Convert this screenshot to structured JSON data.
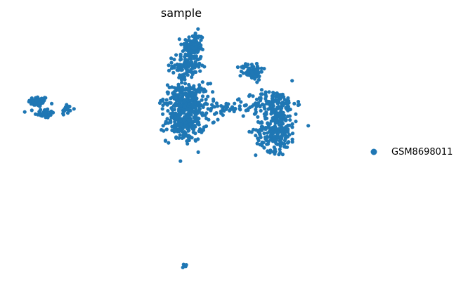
{
  "chart_data": {
    "type": "scatter",
    "title": "sample",
    "xlabel": "",
    "ylabel": "",
    "grid": false,
    "axes_visible": false,
    "legend_position": "right",
    "series": [
      {
        "name": "GSM8698011",
        "color": "#1f77b4",
        "clusters": [
          {
            "id": "far-left-upper",
            "cx": -8.6,
            "cy": 3.45,
            "sx": 0.28,
            "sy": 0.14,
            "n": 55
          },
          {
            "id": "far-left-lower",
            "cx": -8.25,
            "cy": 2.85,
            "sx": 0.28,
            "sy": 0.13,
            "n": 45
          },
          {
            "id": "small-right-of-left",
            "cx": -6.95,
            "cy": 3.05,
            "sx": 0.18,
            "sy": 0.16,
            "n": 18
          },
          {
            "id": "center-top",
            "cx": 0.35,
            "cy": 6.35,
            "sx": 0.32,
            "sy": 0.38,
            "n": 110
          },
          {
            "id": "center-upper-mid",
            "cx": 0.0,
            "cy": 5.35,
            "sx": 0.42,
            "sy": 0.32,
            "n": 110
          },
          {
            "id": "center-mid",
            "cx": -0.05,
            "cy": 3.65,
            "sx": 0.65,
            "sy": 0.38,
            "n": 190
          },
          {
            "id": "center-lower",
            "cx": -0.1,
            "cy": 2.45,
            "sx": 0.55,
            "sy": 0.55,
            "n": 240
          },
          {
            "id": "bridge",
            "cx": 2.3,
            "cy": 3.05,
            "sx": 0.75,
            "sy": 0.22,
            "n": 45
          },
          {
            "id": "right-top",
            "cx": 3.75,
            "cy": 5.05,
            "sx": 0.32,
            "sy": 0.22,
            "n": 80
          },
          {
            "id": "right-upper",
            "cx": 5.05,
            "cy": 3.35,
            "sx": 0.62,
            "sy": 0.35,
            "n": 140
          },
          {
            "id": "right-lower",
            "cx": 5.15,
            "cy": 1.95,
            "sx": 0.58,
            "sy": 0.55,
            "n": 230
          },
          {
            "id": "bottom-outlier",
            "cx": -0.08,
            "cy": -5.15,
            "sx": 0.05,
            "sy": 0.05,
            "n": 5
          }
        ]
      }
    ],
    "xlim": [
      -10,
      9.5
    ],
    "ylim": [
      -5.8,
      7.5
    ]
  }
}
